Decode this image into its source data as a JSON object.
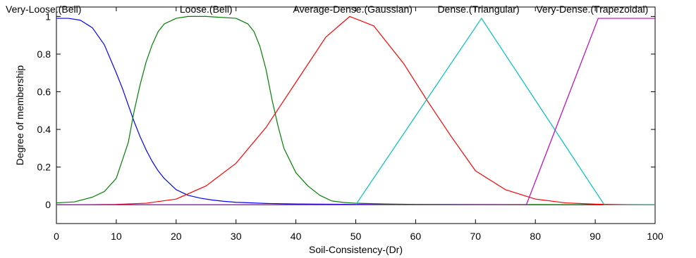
{
  "chart_data": {
    "type": "line",
    "title": "",
    "xlabel": "Soil-Consistency-(Dr)",
    "ylabel": "Degree of membership",
    "xlim": [
      0,
      100
    ],
    "ylim": [
      -0.1,
      1.05
    ],
    "xticks": [
      0,
      10,
      20,
      30,
      40,
      50,
      60,
      70,
      80,
      90,
      100
    ],
    "yticks": [
      0,
      0.2,
      0.4,
      0.6,
      0.8,
      1
    ],
    "ytick_labels": [
      "0",
      "0.2",
      "0.4",
      "0.6",
      "0.8",
      "1"
    ],
    "grid": false,
    "series": [
      {
        "name": "Very-Loose.(Bell)",
        "color": "#0000ff",
        "label_at": [
          0,
          1.02
        ],
        "x": [
          0,
          2,
          4,
          6,
          8,
          10,
          11,
          12,
          13,
          14,
          15,
          16,
          17,
          18,
          20,
          22,
          24,
          26,
          28,
          30,
          35,
          40,
          50,
          60,
          70,
          80,
          90,
          100
        ],
        "y": [
          0.99,
          0.99,
          0.98,
          0.94,
          0.85,
          0.7,
          0.62,
          0.53,
          0.44,
          0.36,
          0.29,
          0.23,
          0.18,
          0.14,
          0.08,
          0.05,
          0.035,
          0.025,
          0.018,
          0.013,
          0.007,
          0.004,
          0.002,
          0.001,
          0.001,
          0,
          0,
          0
        ]
      },
      {
        "name": "Loose.(Bell)",
        "color": "#008000",
        "label_at": [
          25,
          1.02
        ],
        "x": [
          0,
          3,
          6,
          8,
          10,
          12,
          13,
          14,
          15,
          16,
          17,
          18,
          20,
          22,
          25,
          30,
          32,
          33,
          34,
          35,
          36,
          37,
          38,
          40,
          42,
          44,
          46,
          48,
          50,
          55,
          60,
          70,
          80,
          90,
          100
        ],
        "y": [
          0.01,
          0.015,
          0.04,
          0.07,
          0.14,
          0.33,
          0.5,
          0.64,
          0.76,
          0.85,
          0.92,
          0.96,
          0.99,
          1.0,
          1.0,
          0.99,
          0.96,
          0.92,
          0.84,
          0.72,
          0.56,
          0.42,
          0.3,
          0.17,
          0.1,
          0.05,
          0.02,
          0.012,
          0.008,
          0.004,
          0.002,
          0.001,
          0.001,
          0,
          0
        ]
      },
      {
        "name": "Average-Dense.(Gaussian)",
        "color": "#ff0000",
        "label_at": [
          49.5,
          1.02
        ],
        "x": [
          0,
          5,
          10,
          15,
          20,
          25,
          30,
          35,
          40,
          45,
          49,
          53,
          58,
          62,
          66,
          70,
          75,
          80,
          85,
          90,
          95,
          100
        ],
        "y": [
          0,
          0,
          0.002,
          0.008,
          0.03,
          0.1,
          0.22,
          0.41,
          0.65,
          0.89,
          1.0,
          0.95,
          0.75,
          0.55,
          0.36,
          0.18,
          0.08,
          0.03,
          0.01,
          0.003,
          0.001,
          0
        ]
      },
      {
        "name": "Dense.(Triangular)",
        "color": "#00bfbf",
        "label_at": [
          70.5,
          1.02
        ],
        "x": [
          0,
          50,
          71,
          91.5,
          100
        ],
        "y": [
          0,
          0,
          0.99,
          0,
          0
        ]
      },
      {
        "name": "Very-Dense.(Trapezoidal)",
        "color": "#bf00bf",
        "label_at": [
          89.5,
          1.02
        ],
        "x": [
          0,
          78.5,
          90.5,
          100
        ],
        "y": [
          0,
          0,
          0.99,
          0.99
        ]
      }
    ]
  }
}
